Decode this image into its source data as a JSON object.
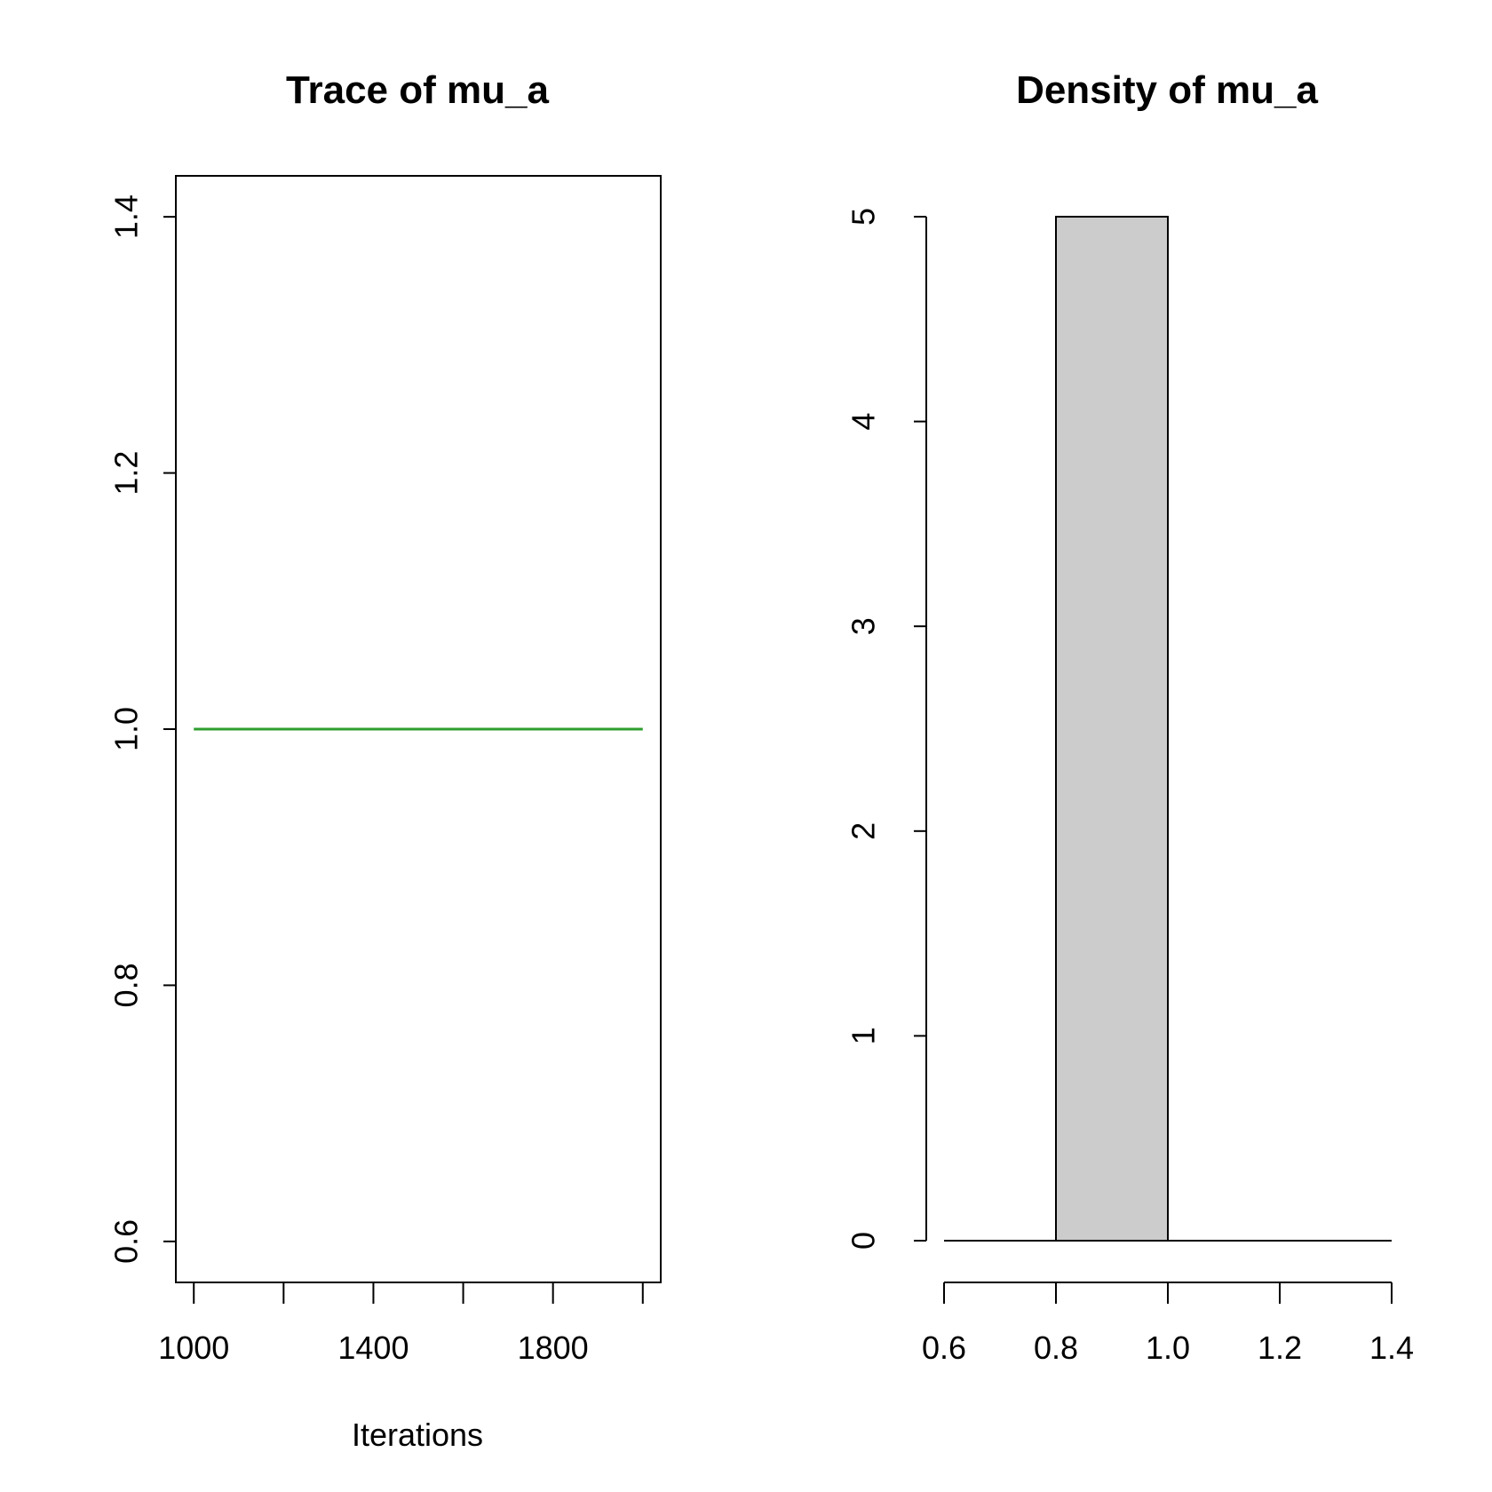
{
  "chart_data": [
    {
      "type": "line",
      "title": "Trace of mu_a",
      "xlabel": "Iterations",
      "ylabel": "",
      "xlim": [
        960,
        2040
      ],
      "ylim": [
        0.568,
        1.432
      ],
      "xticks": [
        1000,
        1200,
        1400,
        1600,
        1800,
        2000
      ],
      "xtick_labels": [
        "1000",
        "",
        "1400",
        "",
        "1800",
        ""
      ],
      "yticks": [
        0.6,
        0.8,
        1.0,
        1.2,
        1.4
      ],
      "ytick_labels": [
        "0.6",
        "0.8",
        "1.0",
        "1.2",
        "1.4"
      ],
      "series": [
        {
          "x": [
            1000,
            2000
          ],
          "y": [
            1.0,
            1.0
          ],
          "color": "#2e9e2e"
        }
      ],
      "grid": false,
      "box": true
    },
    {
      "type": "bar",
      "title": "Density of mu_a",
      "xlabel": "",
      "ylabel": "",
      "xlim": [
        0.6,
        1.4
      ],
      "ylim": [
        0,
        5
      ],
      "xticks": [
        0.6,
        0.8,
        1.0,
        1.2,
        1.4
      ],
      "xtick_labels": [
        "0.6",
        "0.8",
        "1.0",
        "1.2",
        "1.4"
      ],
      "yticks": [
        0,
        1,
        2,
        3,
        4,
        5
      ],
      "ytick_labels": [
        "0",
        "1",
        "2",
        "3",
        "4",
        "5"
      ],
      "bins": [
        {
          "x0": 0.8,
          "x1": 1.0,
          "value": 5
        }
      ],
      "baseline": 0,
      "bar_color": "#cccccc",
      "grid": false,
      "box": false
    }
  ]
}
